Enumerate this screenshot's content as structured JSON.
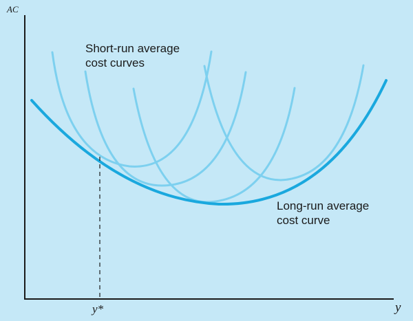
{
  "axes": {
    "y_label": "AC",
    "x_label": "y",
    "x_tick": "y*"
  },
  "labels": {
    "short_run_line1": "Short-run average",
    "short_run_line2": "cost curves",
    "long_run_line1": "Long-run average",
    "long_run_line2": "cost curve"
  },
  "colors": {
    "background": "#c5e8f7",
    "short_run_curve": "#7dd0ef",
    "long_run_curve": "#1aa8de",
    "axis": "#1a1a1a"
  }
}
